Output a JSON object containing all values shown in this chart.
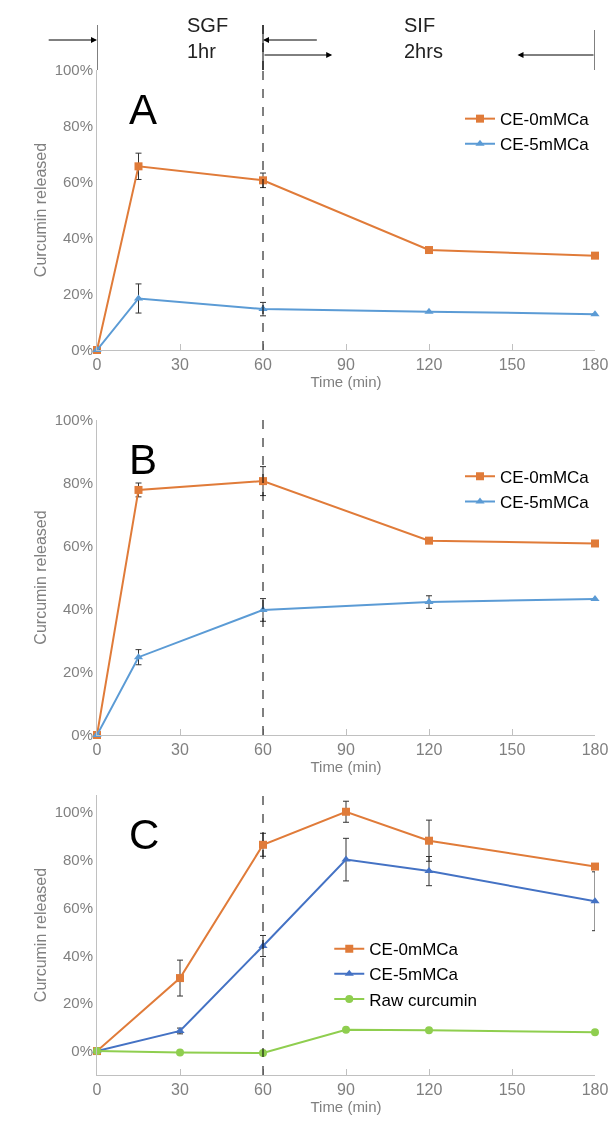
{
  "chart_data": [
    {
      "type": "line",
      "title": "A",
      "xlabel": "Time (min)",
      "ylabel": "Curcumin released",
      "x": [
        0,
        15,
        60,
        120,
        180
      ],
      "series": [
        {
          "name": "CE-0mMCa",
          "color": "#e07b39",
          "marker": "square",
          "values": [
            0,
            65.6,
            60.6,
            35.7,
            33.7
          ],
          "errors": [
            null,
            4.7,
            2.6,
            null,
            null
          ]
        },
        {
          "name": "CE-5mMCa",
          "color": "#5b9bd5",
          "marker": "triangle",
          "values": [
            0,
            18.4,
            14.6,
            13.7,
            12.8
          ],
          "errors": [
            null,
            5.2,
            2.4,
            null,
            null
          ]
        }
      ],
      "xlim": [
        0,
        180
      ],
      "xticks": [
        0,
        30,
        60,
        90,
        120,
        150,
        180
      ],
      "ylim": [
        0,
        100
      ],
      "yticks": [
        {
          "value": 0,
          "label": "0%"
        },
        {
          "value": 20,
          "label": "20%"
        },
        {
          "value": 40,
          "label": "40%"
        },
        {
          "value": 60,
          "label": "60%"
        },
        {
          "value": 80,
          "label": "80%"
        },
        {
          "value": 100,
          "label": "100%"
        }
      ],
      "ref_lines": [
        {
          "axis": "x",
          "value": 60,
          "color": "#000000",
          "line_style": "dashed"
        }
      ],
      "annotations": [
        "SGF\n1hr",
        "SIF\n2hrs"
      ],
      "legend": "top right",
      "line_style": "solid"
    },
    {
      "type": "line",
      "title": "B",
      "xlabel": "Time (min)",
      "ylabel": "Curcumin released",
      "x": [
        0,
        15,
        60,
        120,
        180
      ],
      "series": [
        {
          "name": "CE-0mMCa",
          "color": "#e07b39",
          "marker": "square",
          "values": [
            0,
            77.8,
            80.6,
            61.7,
            60.8
          ],
          "errors": [
            null,
            2.2,
            4.6,
            null,
            null
          ]
        },
        {
          "name": "CE-5mMCa",
          "color": "#5b9bd5",
          "marker": "triangle",
          "values": [
            0,
            24.7,
            39.7,
            42.2,
            43.2
          ],
          "errors": [
            null,
            2.4,
            3.6,
            2.0,
            null
          ]
        }
      ],
      "xlim": [
        0,
        180
      ],
      "xticks": [
        0,
        30,
        60,
        90,
        120,
        150,
        180
      ],
      "ylim": [
        0,
        100
      ],
      "yticks": [
        {
          "value": 0,
          "label": "0%"
        },
        {
          "value": 20,
          "label": "20%"
        },
        {
          "value": 40,
          "label": "40%"
        },
        {
          "value": 60,
          "label": "60%"
        },
        {
          "value": 80,
          "label": "80%"
        },
        {
          "value": 100,
          "label": "100%"
        }
      ],
      "ref_lines": [
        {
          "axis": "x",
          "value": 60,
          "color": "#000000",
          "line_style": "dashed"
        }
      ],
      "legend": "top right",
      "line_style": "solid"
    },
    {
      "type": "line",
      "title": "C",
      "xlabel": "Time (min)",
      "ylabel": "Curcumin released",
      "x": [
        0,
        30,
        60,
        90,
        120,
        180
      ],
      "series": [
        {
          "name": "CE-0mMCa",
          "color": "#e07b39",
          "marker": "square",
          "values": [
            0,
            30.5,
            86.2,
            100,
            87.9,
            77.1
          ],
          "errors": [
            null,
            7.5,
            4.8,
            4.4,
            8.6,
            null
          ]
        },
        {
          "name": "CE-5mMCa",
          "color": "#4472c4",
          "marker": "triangle",
          "values": [
            0,
            8.4,
            43.9,
            80.0,
            75.2,
            62.6
          ],
          "errors": [
            null,
            1.2,
            4.4,
            8.9,
            6.1,
            12.3
          ]
        },
        {
          "name": "Raw curcumin",
          "color": "#8fce4f",
          "marker": "circle",
          "values": [
            0,
            -0.6,
            -0.8,
            8.9,
            8.7,
            7.9
          ]
        }
      ],
      "xlim": [
        0,
        180
      ],
      "xticks": [
        0,
        30,
        60,
        90,
        120,
        150,
        180
      ],
      "ylim": [
        -10,
        107
      ],
      "yticks": [
        {
          "value": 0,
          "label": "0%"
        },
        {
          "value": 20,
          "label": "20%"
        },
        {
          "value": 40,
          "label": "40%"
        },
        {
          "value": 60,
          "label": "60%"
        },
        {
          "value": 80,
          "label": "80%"
        },
        {
          "value": 100,
          "label": "100%"
        }
      ],
      "ref_lines": [
        {
          "axis": "x",
          "value": 60,
          "color": "#000000",
          "line_style": "dashed"
        }
      ],
      "legend": "center",
      "line_style": "solid"
    }
  ]
}
